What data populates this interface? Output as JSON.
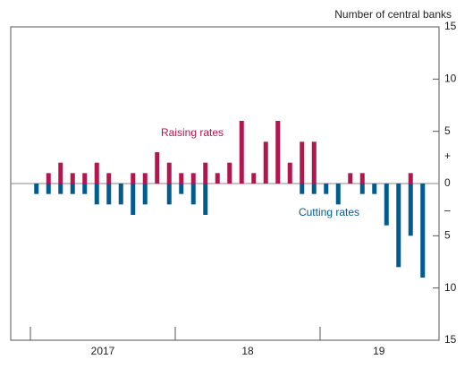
{
  "chart_data": {
    "type": "bar",
    "y_axis_label": "Number of central banks",
    "categories": [
      null,
      null,
      null,
      null,
      null,
      null,
      null,
      null,
      null,
      null,
      null,
      null,
      null,
      null,
      null,
      null,
      null,
      null,
      null,
      null,
      null,
      null,
      null,
      null,
      null,
      null,
      null,
      null,
      null,
      null,
      null,
      null,
      null
    ],
    "year_labels": [
      "2017",
      "18",
      "19"
    ],
    "series": [
      {
        "name": "Raising rates",
        "color": "#b3164f",
        "values": [
          0,
          1,
          2,
          1,
          1,
          2,
          1,
          0,
          1,
          1,
          3,
          2,
          1,
          1,
          2,
          1,
          2,
          6,
          1,
          4,
          6,
          2,
          4,
          4,
          0,
          0,
          1,
          1,
          0,
          0,
          0,
          1,
          0
        ]
      },
      {
        "name": "Cutting rates",
        "color": "#005b8f",
        "values": [
          -1,
          -1,
          -1,
          -1,
          -1,
          -2,
          -2,
          -2,
          -3,
          -2,
          0,
          -2,
          -1,
          -2,
          -3,
          0,
          0,
          0,
          0,
          0,
          0,
          0,
          -1,
          -1,
          -1,
          -2,
          0,
          -1,
          -1,
          -4,
          -8,
          -5,
          -9
        ]
      }
    ],
    "sign_labels": {
      "plus": "+",
      "minus": "–"
    },
    "ylim": [
      -15,
      15
    ],
    "yticks": [
      {
        "value": -15,
        "label": "15"
      },
      {
        "value": -10,
        "label": "10"
      },
      {
        "value": -5,
        "label": "5"
      },
      0,
      5,
      10,
      15
    ]
  }
}
